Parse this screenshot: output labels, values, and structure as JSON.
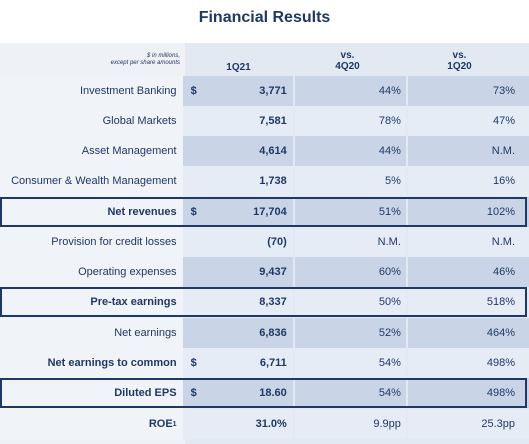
{
  "title": "Financial Results",
  "header": {
    "note_line1": "$ in millions,",
    "note_line2": "except per share amounts",
    "col1": "1Q21",
    "col2_line1": "vs.",
    "col2_line2": "4Q20",
    "col3_line1": "vs.",
    "col3_line2": "1Q20"
  },
  "rows": [
    {
      "label": "Investment Banking",
      "dollar": "$",
      "value": "3,771",
      "vs4q20": "44%",
      "vs1q20": "73%"
    },
    {
      "label": "Global Markets",
      "dollar": "",
      "value": "7,581",
      "vs4q20": "78%",
      "vs1q20": "47%"
    },
    {
      "label": "Asset Management",
      "dollar": "",
      "value": "4,614",
      "vs4q20": "44%",
      "vs1q20": "N.M."
    },
    {
      "label": "Consumer & Wealth Management",
      "dollar": "",
      "value": "1,738",
      "vs4q20": "5%",
      "vs1q20": "16%"
    },
    {
      "label": "Net revenues",
      "dollar": "$",
      "value": "17,704",
      "vs4q20": "51%",
      "vs1q20": "102%"
    },
    {
      "label": "Provision for credit losses",
      "dollar": "",
      "value": "(70)",
      "vs4q20": "N.M.",
      "vs1q20": "N.M."
    },
    {
      "label": "Operating expenses",
      "dollar": "",
      "value": "9,437",
      "vs4q20": "60%",
      "vs1q20": "46%"
    },
    {
      "label": "Pre-tax earnings",
      "dollar": "",
      "value": "8,337",
      "vs4q20": "50%",
      "vs1q20": "518%"
    },
    {
      "label": "Net earnings",
      "dollar": "",
      "value": "6,836",
      "vs4q20": "52%",
      "vs1q20": "464%"
    },
    {
      "label": "Net earnings to common",
      "dollar": "$",
      "value": "6,711",
      "vs4q20": "54%",
      "vs1q20": "498%"
    },
    {
      "label": "Diluted EPS",
      "dollar": "$",
      "value": "18.60",
      "vs4q20": "54%",
      "vs1q20": "498%"
    },
    {
      "label": "ROE",
      "label_sup": "1",
      "dollar": "",
      "value": "31.0%",
      "vs4q20": "9.9pp",
      "vs1q20": "25.3pp"
    }
  ]
}
